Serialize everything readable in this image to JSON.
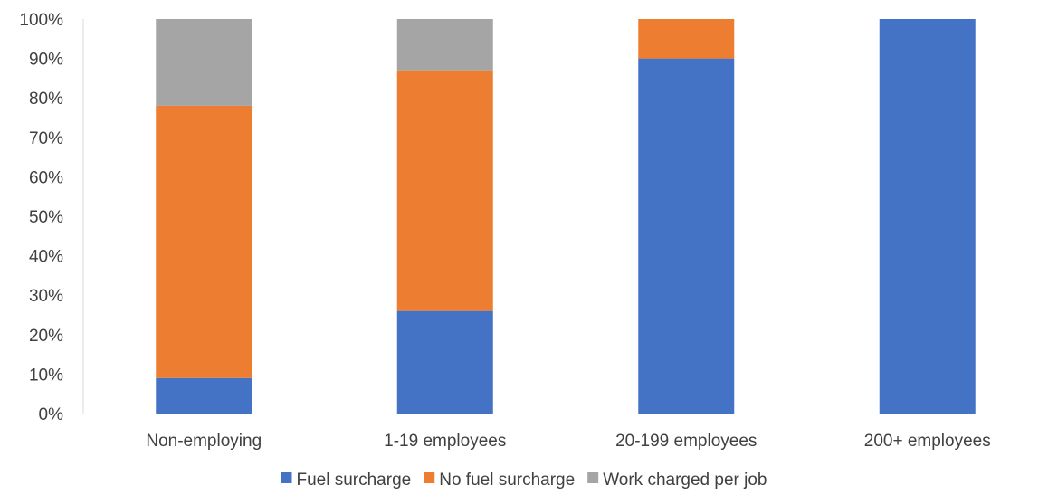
{
  "chart_data": {
    "type": "bar",
    "stacked": true,
    "categories": [
      "Non-employing",
      "1-19 employees",
      "20-199 employees",
      "200+ employees"
    ],
    "series": [
      {
        "name": "Fuel surcharge",
        "color": "#4472C4",
        "values": [
          9,
          26,
          90,
          100
        ]
      },
      {
        "name": "No fuel surcharge",
        "color": "#ED7D31",
        "values": [
          69,
          61,
          10,
          0
        ]
      },
      {
        "name": "Work charged per job",
        "color": "#A5A5A5",
        "values": [
          22,
          13,
          0,
          0
        ]
      }
    ],
    "yticks": [
      "0%",
      "10%",
      "20%",
      "30%",
      "40%",
      "50%",
      "60%",
      "70%",
      "80%",
      "90%",
      "100%"
    ],
    "ylim": [
      0,
      100
    ],
    "grid": false,
    "legend_position": "bottom"
  }
}
